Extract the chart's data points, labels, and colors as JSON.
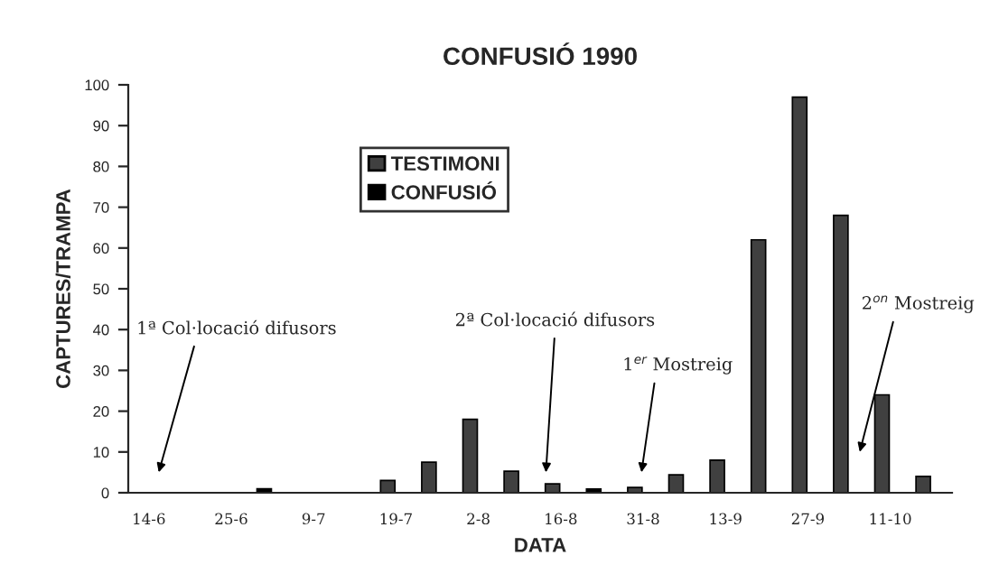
{
  "chart_data": {
    "type": "bar",
    "title": "CONFUSIÓ 1990",
    "xlabel": "DATA",
    "ylabel": "CAPTURES/TRAMPA",
    "categories": [
      "14-6",
      null,
      "25-6",
      null,
      "9-7",
      null,
      "19-7",
      null,
      "2-8",
      null,
      "16-8",
      null,
      "31-8",
      null,
      "13-9",
      null,
      "27-9",
      null,
      "11-10",
      null
    ],
    "series": [
      {
        "name": "TESTIMONI",
        "color": "#404040",
        "values": [
          null,
          null,
          null,
          null,
          null,
          null,
          3,
          7.5,
          18,
          5.3,
          2.2,
          null,
          1.3,
          4.4,
          8,
          62,
          97,
          68,
          24,
          4
        ]
      },
      {
        "name": "CONFUSIÓ",
        "color": "#000000",
        "values": [
          null,
          null,
          null,
          1,
          null,
          null,
          null,
          null,
          null,
          null,
          null,
          0.9,
          null,
          null,
          null,
          null,
          null,
          null,
          null,
          null
        ]
      }
    ],
    "ylim": [
      0,
      100
    ],
    "yticks": [
      0,
      10,
      20,
      30,
      40,
      50,
      60,
      70,
      80,
      90,
      100
    ],
    "grid": false,
    "legend": "top left",
    "annotations": [
      "1ª Col·locació difusors",
      "2ª Col·locació difusors",
      "1$^{er}$ Mostreig",
      "2$^{on}$ Mostreig"
    ]
  }
}
